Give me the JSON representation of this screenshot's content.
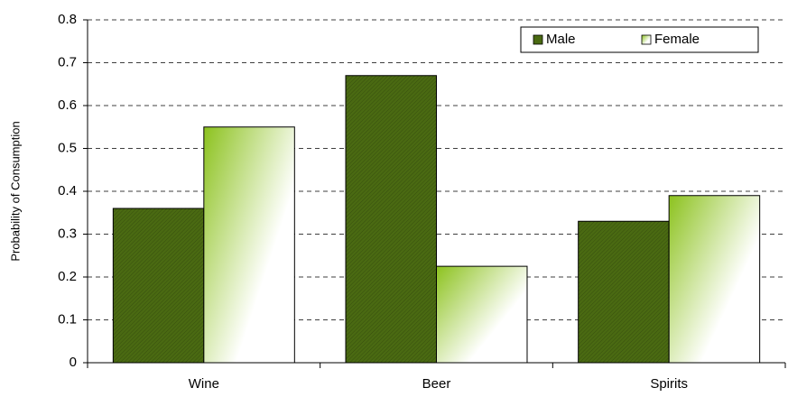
{
  "chart_data": {
    "type": "bar",
    "y_label": "Probability of Consumption",
    "categories": [
      "Wine",
      "Beer",
      "Spirits"
    ],
    "series": [
      {
        "name": "Male",
        "color": "#4a6a12",
        "values": [
          0.36,
          0.67,
          0.33
        ]
      },
      {
        "name": "Female",
        "color": "#8cc21e",
        "values": [
          0.55,
          0.225,
          0.39
        ]
      }
    ],
    "ylim": [
      0,
      0.8
    ],
    "yticks": [
      0,
      0.1,
      0.2,
      0.3,
      0.4,
      0.5,
      0.6,
      0.7,
      0.8
    ],
    "grid": true,
    "legend": "top-right"
  }
}
